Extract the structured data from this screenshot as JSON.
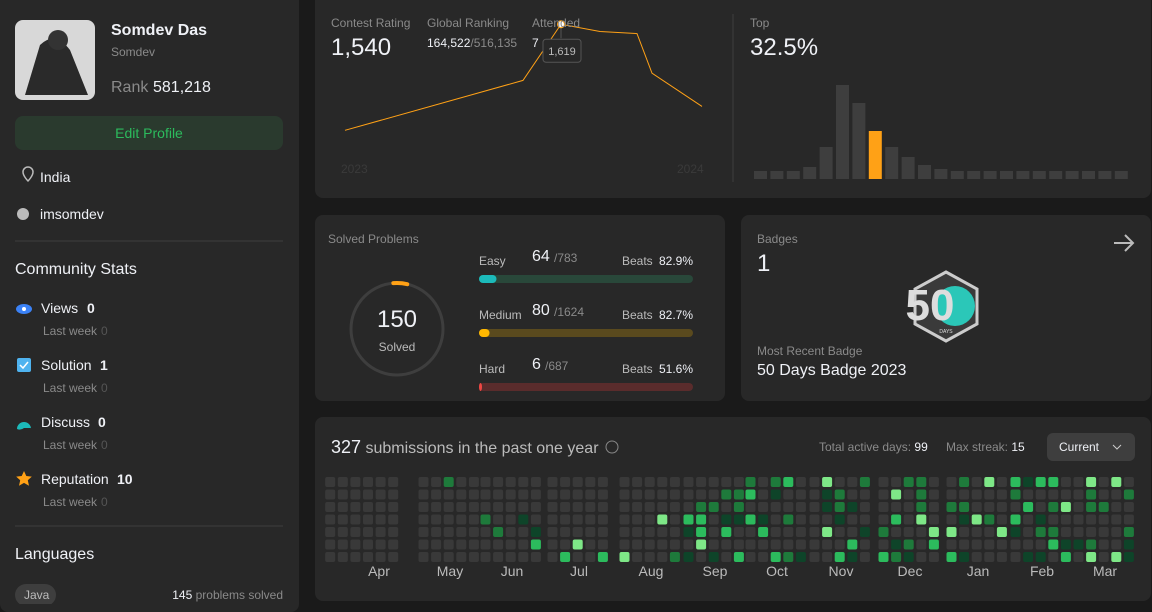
{
  "profile": {
    "name": "Somdev Das",
    "username": "Somdev",
    "rank_label": "Rank",
    "rank": "581,218",
    "edit_button": "Edit Profile",
    "location": "India",
    "github": "imsomdev"
  },
  "community_stats": {
    "title": "Community Stats",
    "items": [
      {
        "label": "Views",
        "value": 0,
        "sub_label": "Last week",
        "sub_value": 0
      },
      {
        "label": "Solution",
        "value": 1,
        "sub_label": "Last week",
        "sub_value": 0
      },
      {
        "label": "Discuss",
        "value": 0,
        "sub_label": "Last week",
        "sub_value": 0
      },
      {
        "label": "Reputation",
        "value": 10,
        "sub_label": "Last week",
        "sub_value": 0
      }
    ]
  },
  "languages": {
    "title": "Languages",
    "items": [
      {
        "name": "Java",
        "count": 145,
        "suffix": "problems solved"
      }
    ]
  },
  "contest": {
    "rating_label": "Contest Rating",
    "rating": "1,540",
    "ranking_label": "Global Ranking",
    "ranking": "164,522",
    "ranking_total": "/516,135",
    "attended_label": "Attended",
    "attended": 7,
    "chart": {
      "type": "line",
      "x_labels": [
        "2023",
        "2024"
      ],
      "values": [
        1517,
        1565,
        1619,
        1612,
        1610,
        1572,
        1540
      ],
      "ylim": [
        1450,
        1700
      ],
      "tooltip": "1,619",
      "color": "#ffa116"
    }
  },
  "top": {
    "label": "Top",
    "value": "32.5%",
    "distribution": {
      "type": "bar",
      "values": [
        8,
        8,
        8,
        12,
        32,
        94,
        76,
        48,
        32,
        22,
        14,
        10,
        8,
        8,
        8,
        8,
        8,
        8,
        8,
        8,
        8,
        8,
        8
      ],
      "color": "#3e3e3e",
      "highlight_index": 7,
      "highlight_color": "#ffa116"
    }
  },
  "solved": {
    "title": "Solved Problems",
    "total": 150,
    "total_label": "Solved",
    "levels": [
      {
        "name": "Easy",
        "solved": 64,
        "total": 783,
        "total_label": "/783",
        "beats_label": "Beats",
        "beats": "82.9%",
        "color": "#1cbaba",
        "track": "#29483a"
      },
      {
        "name": "Medium",
        "solved": 80,
        "total": 1624,
        "total_label": "/1624",
        "beats_label": "Beats",
        "beats": "82.7%",
        "color": "#ffb800",
        "track": "#5a4a1e"
      },
      {
        "name": "Hard",
        "solved": 6,
        "total": 687,
        "total_label": "/687",
        "beats_label": "Beats",
        "beats": "51.6%",
        "color": "#ef4743",
        "track": "#5a2c2c"
      }
    ]
  },
  "badges": {
    "title": "Badges",
    "count": 1,
    "badge_number": "50",
    "badge_sub": "DAYS",
    "recent_label": "Most Recent Badge",
    "recent": "50 Days Badge 2023"
  },
  "submissions": {
    "count": 327,
    "label": "submissions in the past one year",
    "active_label": "Total active days:",
    "active": 99,
    "streak_label": "Max streak:",
    "streak": 15,
    "dropdown": "Current",
    "months": [
      "Apr",
      "May",
      "Jun",
      "Jul",
      "Aug",
      "Sep",
      "Oct",
      "Nov",
      "Dec",
      "Jan",
      "Feb",
      "Mar"
    ]
  }
}
